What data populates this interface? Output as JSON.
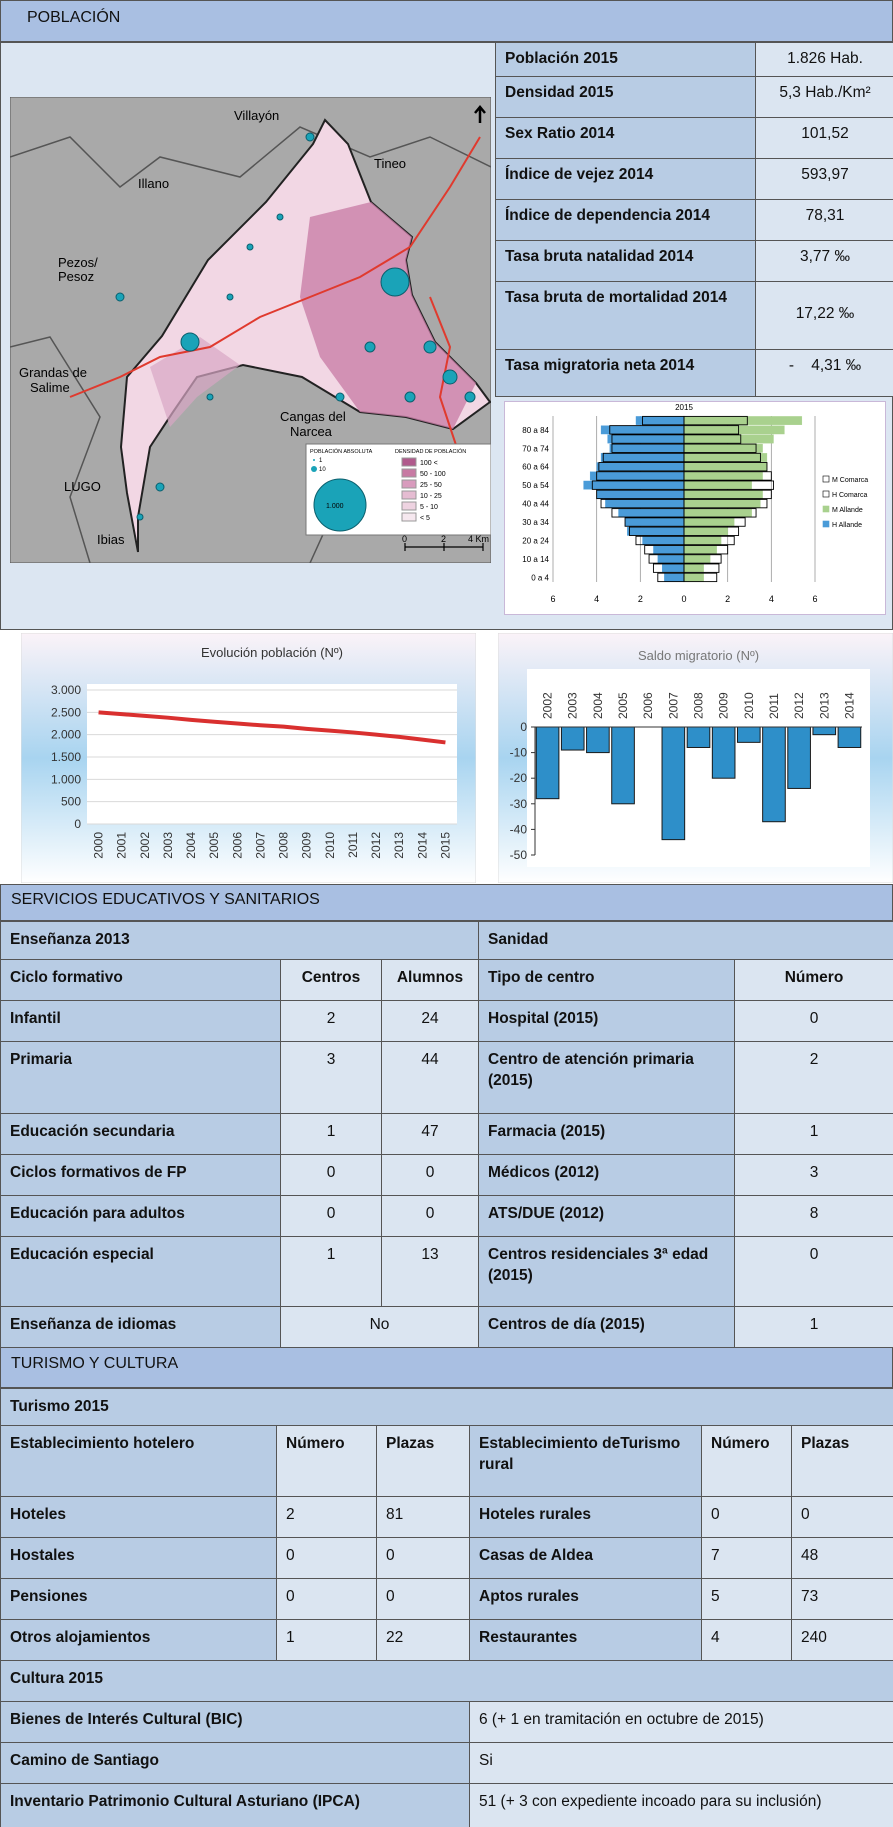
{
  "poblacion": {
    "title": "POBLACIÓN",
    "stats": [
      [
        "Población 2015",
        "1.826 Hab."
      ],
      [
        "Densidad 2015",
        "5,3 Hab./Km²"
      ],
      [
        "Sex Ratio 2014",
        "101,52"
      ],
      [
        "Índice de vejez 2014",
        "593,97"
      ],
      [
        "Índice de dependencia 2014",
        "78,31"
      ],
      [
        "Tasa bruta natalidad 2014",
        "3,77 ‰"
      ],
      [
        "Tasa bruta de mortalidad 2014",
        "17,22 ‰"
      ],
      [
        "Tasa migratoria neta 2014",
        "-    4,31 ‰"
      ]
    ],
    "map": {
      "places": [
        [
          "Villayón"
        ],
        [
          "Tineo"
        ],
        [
          "Illano"
        ],
        [
          "Pezos/",
          "Pesoz"
        ],
        [
          "Grandas de",
          "Salime"
        ],
        [
          "Cangas del",
          "Narcea"
        ],
        [
          "LUGO"
        ],
        [
          "Ibias"
        ]
      ],
      "legend": {
        "absoluta": "POBLACIÓN ABSOLUTA",
        "sizes": [
          "1",
          "10",
          "1.000"
        ],
        "densidad": "DENSIDAD DE POBLACIÓN",
        "classes": [
          "100 <",
          "50 - 100",
          "25 - 50",
          "10 - 25",
          "5 - 10",
          "< 5"
        ],
        "scale": [
          "0",
          "2",
          "4 Km"
        ]
      }
    }
  },
  "chart_data": [
    {
      "type": "pyramid",
      "title": "2015",
      "categories": [
        "0 a 4",
        null,
        "10 a 14",
        null,
        "20 a 24",
        null,
        "30 a 34",
        null,
        "40 a 44",
        null,
        "50 a 54",
        null,
        "60 a 64",
        null,
        "70 a 74",
        null,
        "80 a 84",
        null
      ],
      "series": [
        {
          "name": "M Comarca",
          "color": "#ffffff",
          "outline": true,
          "values": [
            1.5,
            1.6,
            1.7,
            2.0,
            2.3,
            2.5,
            2.8,
            3.3,
            3.8,
            4.0,
            4.1,
            4.0,
            3.8,
            3.5,
            3.3,
            2.6,
            2.5,
            2.9
          ]
        },
        {
          "name": "H Comarca",
          "color": "#ffffff",
          "outline": true,
          "values": [
            -1.2,
            -1.4,
            -1.6,
            -1.8,
            -2.2,
            -2.5,
            -2.7,
            -3.3,
            -3.8,
            -4.0,
            -4.2,
            -4.0,
            -3.9,
            -3.7,
            -3.3,
            -3.3,
            -3.4,
            -1.9
          ]
        },
        {
          "name": "M Allande",
          "color": "#a9d18e",
          "outline": false,
          "values": [
            0.9,
            0.9,
            1.2,
            1.5,
            1.7,
            2.0,
            2.3,
            3.1,
            3.5,
            3.6,
            3.1,
            3.6,
            3.8,
            3.8,
            3.6,
            4.1,
            4.6,
            5.4
          ]
        },
        {
          "name": "H Allande",
          "color": "#4a9bd8",
          "outline": false,
          "values": [
            -0.9,
            -1.0,
            -1.2,
            -1.4,
            -1.9,
            -2.6,
            -2.7,
            -3.0,
            -3.6,
            -4.0,
            -4.6,
            -4.3,
            -4.0,
            -3.8,
            -3.4,
            -3.5,
            -3.8,
            -2.2
          ]
        }
      ],
      "xlim": [
        -6,
        6
      ],
      "xticks": [
        {
          "value": -6,
          "label": "6"
        },
        {
          "value": -4,
          "label": "4"
        },
        {
          "value": -2,
          "label": "2"
        },
        0,
        2,
        4,
        6
      ],
      "grid": true
    },
    {
      "type": "line",
      "title": "Evolución población (Nº)",
      "categories": [
        "2000",
        "2001",
        "2002",
        "2003",
        "2004",
        "2005",
        "2006",
        "2007",
        "2008",
        "2009",
        "2010",
        "2011",
        "2012",
        "2013",
        "2014",
        "2015"
      ],
      "values": [
        2500,
        2460,
        2420,
        2380,
        2330,
        2290,
        2250,
        2210,
        2180,
        2130,
        2090,
        2050,
        2000,
        1950,
        1890,
        1826
      ],
      "color": "#d9302f",
      "ylim": [
        0,
        3000
      ],
      "yticks": [
        0,
        500,
        {
          "value": 1000,
          "label": "1.000"
        },
        {
          "value": 1500,
          "label": "1.500"
        },
        {
          "value": 2000,
          "label": "2.000"
        },
        {
          "value": 2500,
          "label": "2.500"
        },
        {
          "value": 3000,
          "label": "3.000"
        }
      ],
      "grid": true
    },
    {
      "type": "bar",
      "title": "Saldo migratorio (Nº)",
      "categories": [
        "2002",
        "2003",
        "2004",
        "2005",
        "2006",
        "2007",
        "2008",
        "2009",
        "2010",
        "2011",
        "2012",
        "2013",
        "2014"
      ],
      "values": [
        -28,
        -9,
        -10,
        -30,
        0,
        -44,
        -8,
        -20,
        -6,
        -37,
        -24,
        -3,
        -8
      ],
      "color": "#2e8fc9",
      "ylim": [
        -50,
        0
      ],
      "yticks": [
        0,
        -10,
        -20,
        -30,
        -40,
        -50
      ],
      "grid": false
    }
  ],
  "servicios": {
    "title": "SERVICIOS EDUCATIVOS Y SANITARIOS",
    "ensenanza": {
      "title": "Enseñanza 2013",
      "header": [
        "Ciclo formativo",
        "Centros",
        "Alumnos"
      ],
      "rows": [
        [
          "Infantil",
          2,
          24
        ],
        [
          "Primaria",
          3,
          44
        ],
        [
          "Educación secundaria",
          1,
          47
        ],
        [
          "Ciclos formativos de FP",
          0,
          0
        ],
        [
          "Educación para adultos",
          0,
          0
        ],
        [
          "Educación especial",
          1,
          13
        ],
        [
          "Enseñanza de idiomas",
          "No"
        ]
      ]
    },
    "sanidad": {
      "title": "Sanidad",
      "header": [
        "Tipo de centro",
        "Número"
      ],
      "rows": [
        [
          "Hospital  (2015)",
          0
        ],
        [
          "Centro de atención primaria (2015)",
          2
        ],
        [
          "Farmacia  (2015)",
          1
        ],
        [
          "Médicos (2012)",
          3
        ],
        [
          "ATS/DUE (2012)",
          8
        ],
        [
          "Centros residenciales 3ª edad (2015)",
          0
        ],
        [
          "Centros de día (2015)",
          1
        ]
      ]
    }
  },
  "turismo": {
    "title": "TURISMO Y CULTURA",
    "turismo": {
      "title": "Turismo 2015",
      "header": [
        "Establecimiento hotelero",
        "Número",
        "Plazas",
        "Establecimiento deTurismo rural",
        "Número",
        "Plazas"
      ],
      "rows": [
        [
          "Hoteles",
          2,
          81,
          "Hoteles rurales",
          0,
          0
        ],
        [
          "Hostales",
          0,
          0,
          "Casas de Aldea",
          7,
          48
        ],
        [
          "Pensiones",
          0,
          0,
          "Aptos rurales",
          5,
          73
        ],
        [
          "Otros alojamientos",
          1,
          22,
          "Restaurantes",
          4,
          240
        ]
      ]
    },
    "cultura": {
      "title": "Cultura 2015",
      "rows": [
        [
          "Bienes de Interés Cultural (BIC)",
          "6 (+ 1 en tramitación en octubre de 2015)"
        ],
        [
          "Camino de Santiago",
          "Si"
        ],
        [
          "Inventario Patrimonio Cultural Asturiano (IPCA)",
          "51 (+ 3 con expediente incoado para su inclusión)"
        ]
      ]
    }
  }
}
